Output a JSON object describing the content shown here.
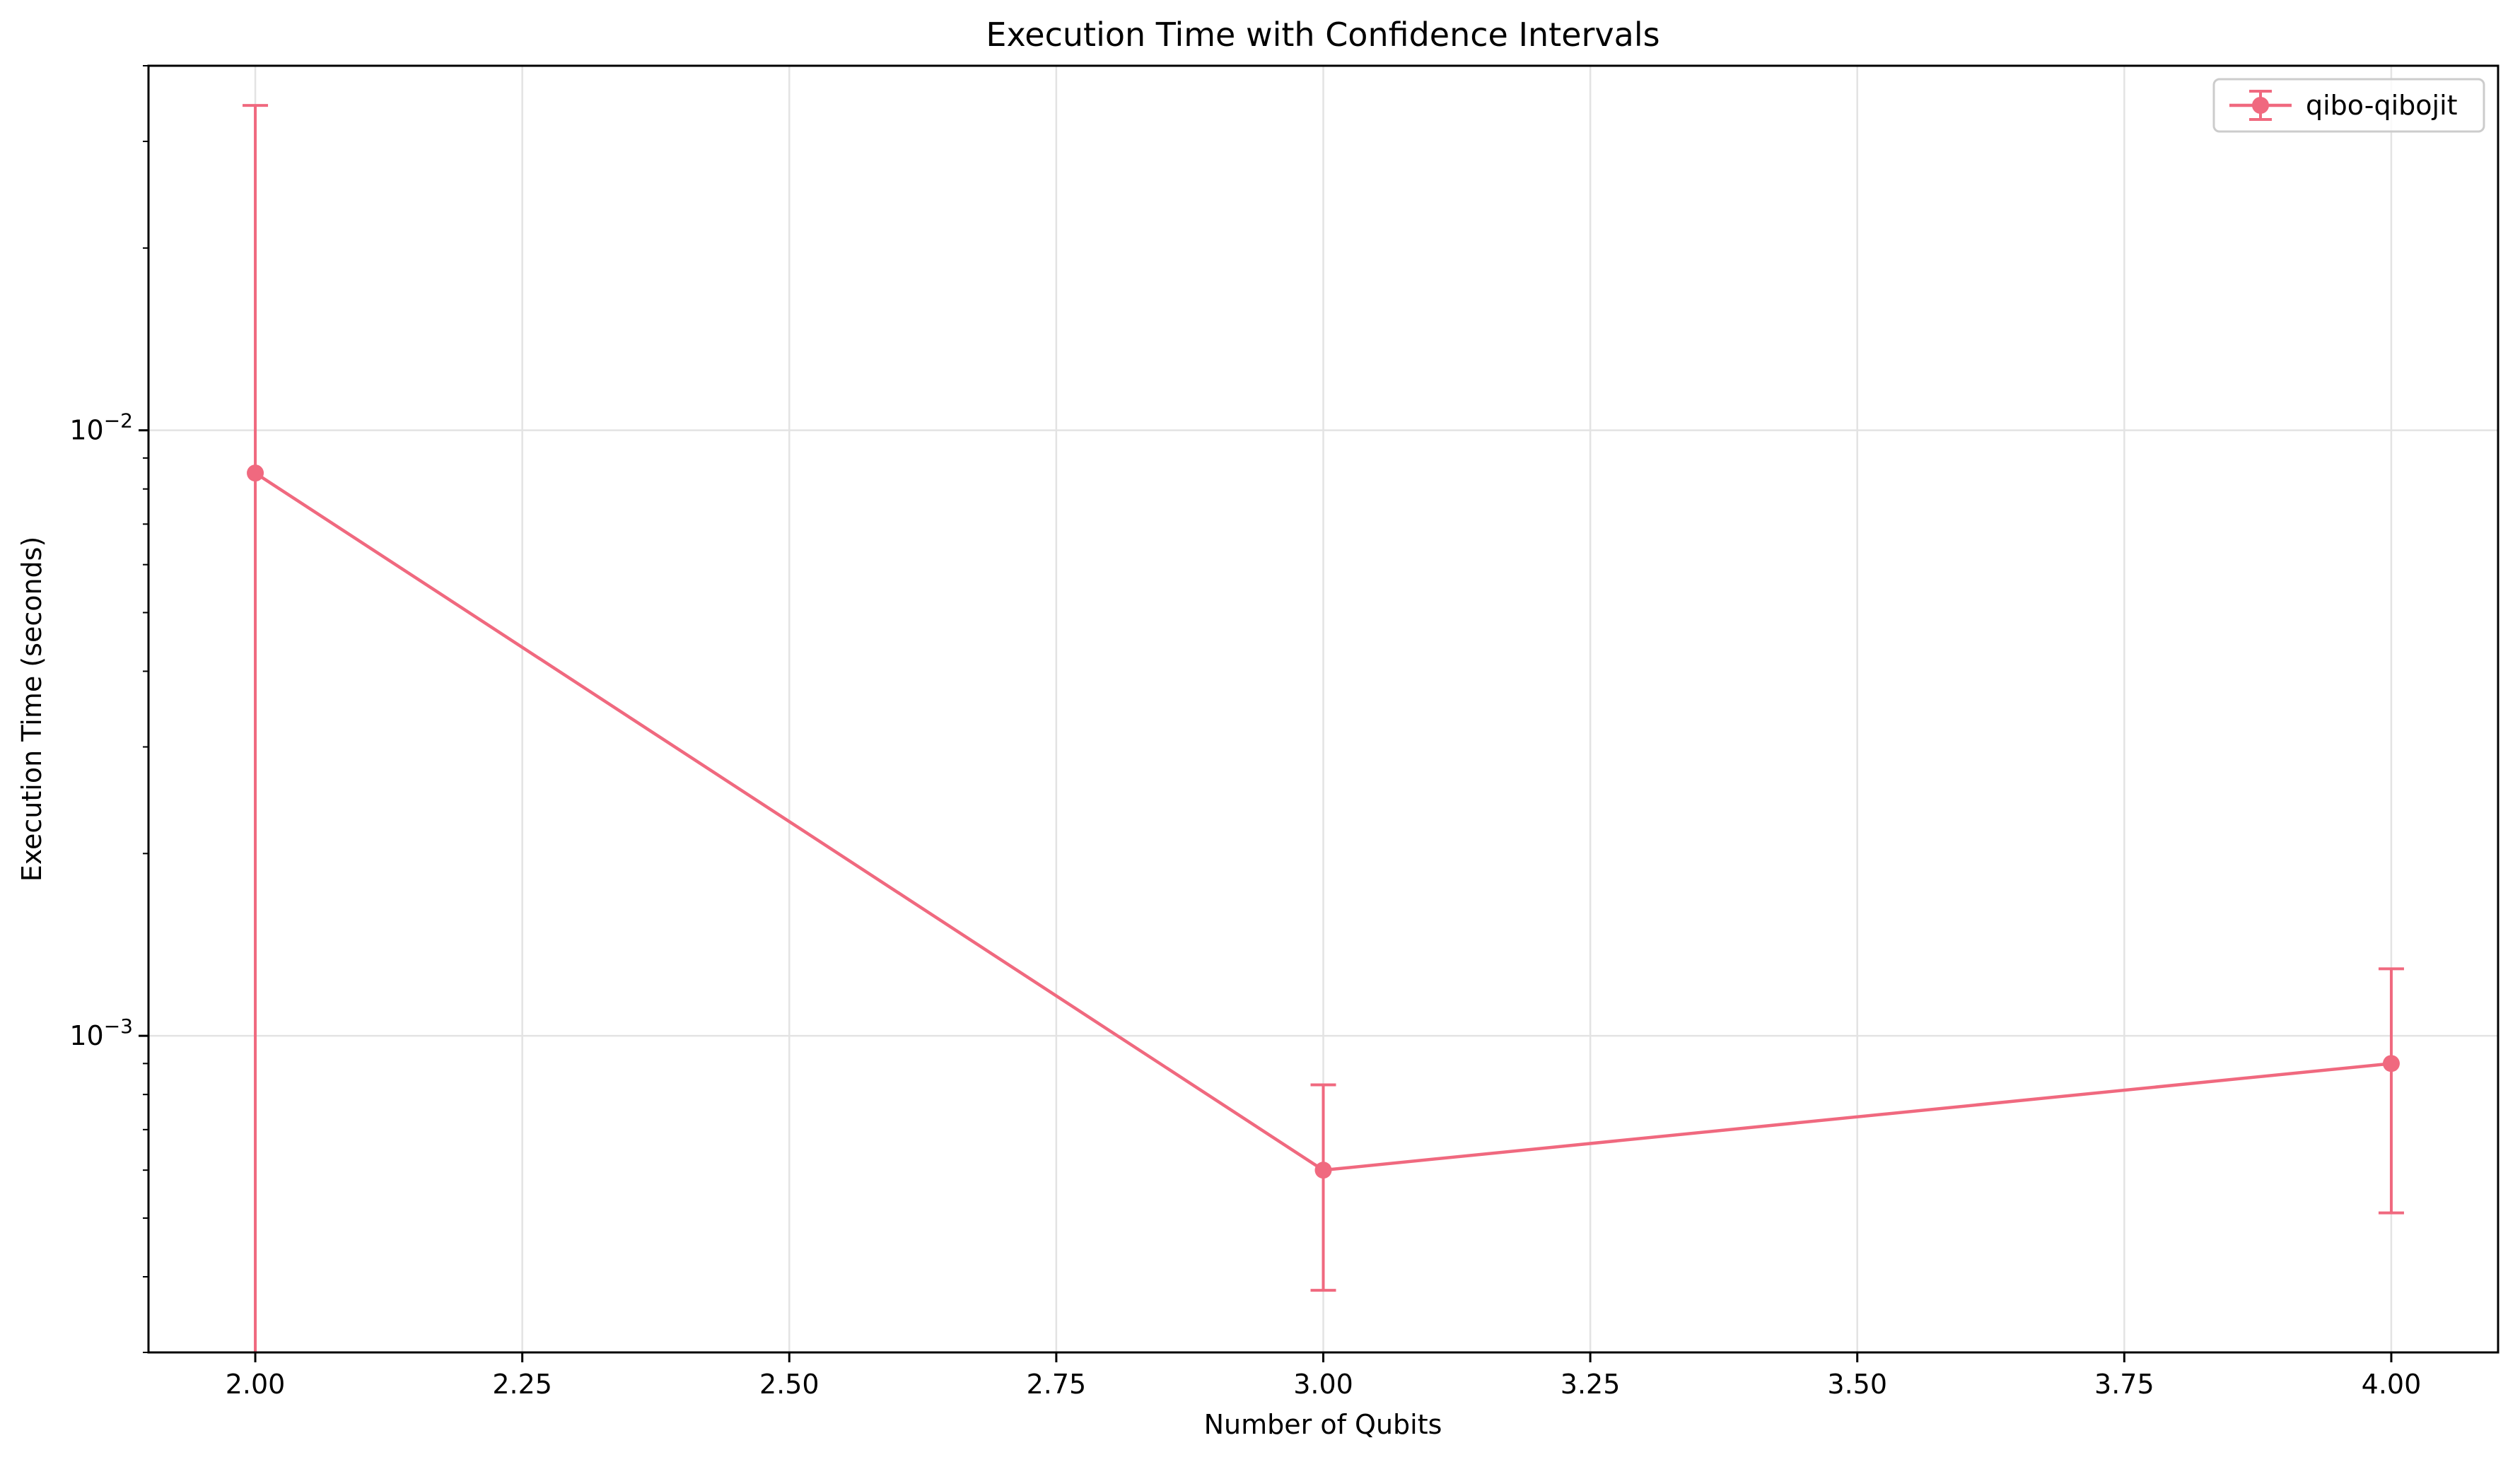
{
  "chart_data": {
    "type": "line",
    "title": "Execution Time with Confidence Intervals",
    "xlabel": "Number of Qubits",
    "ylabel": "Execution Time (seconds)",
    "xlim": [
      1.9,
      4.1
    ],
    "ylim": [
      0.0003,
      0.04
    ],
    "yscale": "log",
    "grid": true,
    "legend_position": "top-right",
    "x_ticks": [
      {
        "value": 2.0,
        "label": "2.00"
      },
      {
        "value": 2.25,
        "label": "2.25"
      },
      {
        "value": 2.5,
        "label": "2.50"
      },
      {
        "value": 2.75,
        "label": "2.75"
      },
      {
        "value": 3.0,
        "label": "3.00"
      },
      {
        "value": 3.25,
        "label": "3.25"
      },
      {
        "value": 3.5,
        "label": "3.50"
      },
      {
        "value": 3.75,
        "label": "3.75"
      },
      {
        "value": 4.0,
        "label": "4.00"
      }
    ],
    "y_ticks": [
      {
        "value": 0.001,
        "base": "10",
        "exp": "−3"
      },
      {
        "value": 0.01,
        "base": "10",
        "exp": "−2"
      }
    ],
    "series": [
      {
        "name": "qibo-qibojit",
        "color": "#f0697f",
        "x": [
          2,
          3,
          4
        ],
        "y": [
          0.0085,
          0.0006,
          0.0009
        ],
        "ci_low": [
          0.0003,
          0.00038,
          0.00051
        ],
        "ci_high": [
          0.0344,
          0.00083,
          0.00129
        ]
      }
    ]
  }
}
